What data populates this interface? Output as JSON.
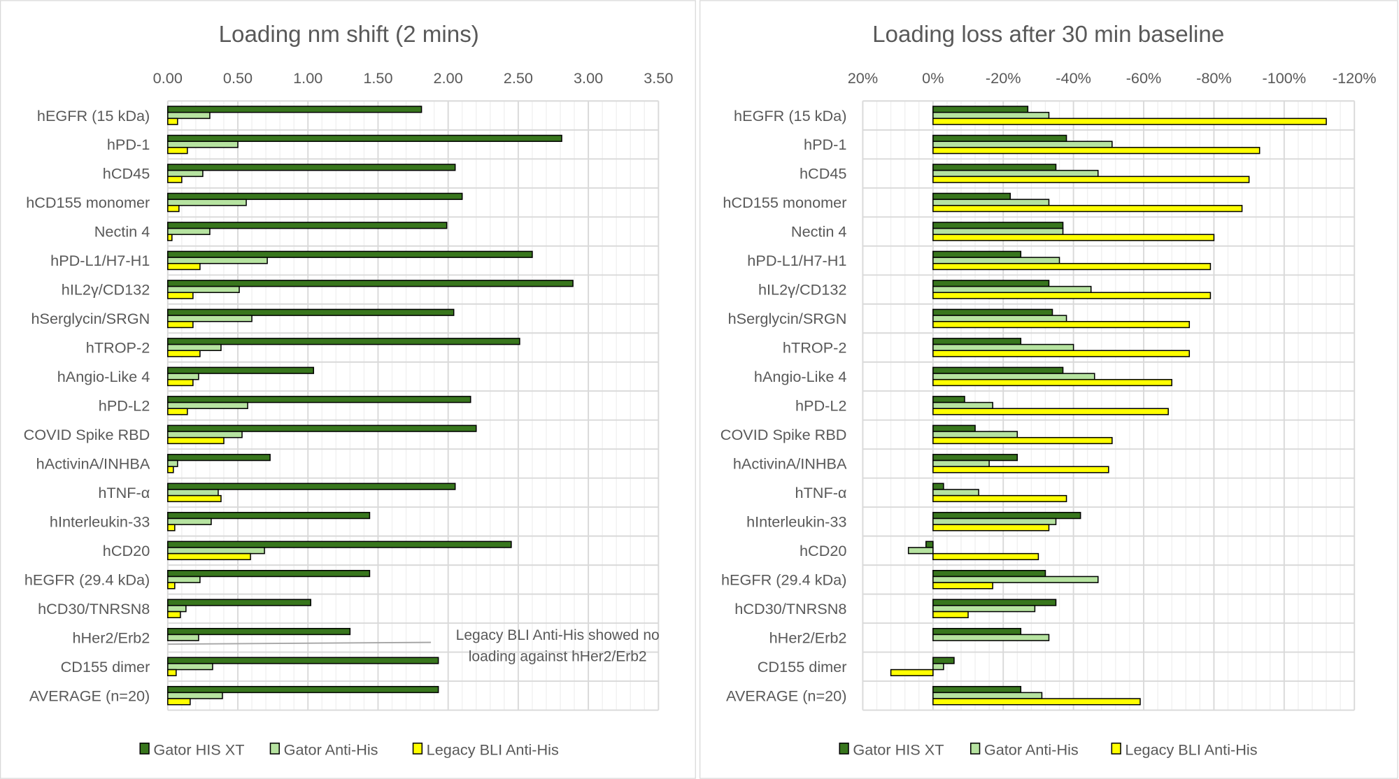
{
  "colors": {
    "gator_his_xt": "#38761d",
    "gator_anti_his": "#b6e3a0",
    "legacy_bli": "#ffff00",
    "grid_major": "#d9d9d9",
    "grid_minor": "#efefef",
    "text": "#595959"
  },
  "chart_data": [
    {
      "type": "bar",
      "orientation": "horizontal",
      "title": "Loading nm shift (2 mins)",
      "xlabel": "",
      "ylabel": "",
      "xlim": [
        0,
        3.5
      ],
      "x_ticks": [
        "0.00",
        "0.50",
        "1.00",
        "1.50",
        "2.00",
        "2.50",
        "3.00",
        "3.50"
      ],
      "grid": true,
      "legend": "bottom",
      "categories": [
        "hEGFR (15 kDa)",
        "hPD-1",
        "hCD45",
        "hCD155 monomer",
        "Nectin 4",
        "hPD-L1/H7-H1",
        "hIL2γ/CD132",
        "hSerglycin/SRGN",
        "hTROP-2",
        "hAngio-Like 4",
        "hPD-L2",
        "COVID Spike RBD",
        "hActivinA/INHBA",
        "hTNF-α",
        "hInterleukin-33",
        "hCD20",
        "hEGFR (29.4 kDa)",
        "hCD30/TNRSN8",
        "hHer2/Erb2",
        "CD155 dimer",
        "AVERAGE (n=20)"
      ],
      "series": [
        {
          "name": "Gator HIS XT",
          "values": [
            1.81,
            2.81,
            2.05,
            2.1,
            1.99,
            2.6,
            2.89,
            2.04,
            2.51,
            1.04,
            2.16,
            2.2,
            0.73,
            2.05,
            1.44,
            2.45,
            1.44,
            1.02,
            1.3,
            1.93,
            1.93
          ]
        },
        {
          "name": "Gator Anti-His",
          "values": [
            0.3,
            0.5,
            0.25,
            0.56,
            0.3,
            0.71,
            0.51,
            0.6,
            0.38,
            0.22,
            0.57,
            0.53,
            0.07,
            0.36,
            0.31,
            0.69,
            0.23,
            0.13,
            0.22,
            0.32,
            0.39
          ]
        },
        {
          "name": "Legacy BLI Anti-His",
          "values": [
            0.07,
            0.14,
            0.1,
            0.08,
            0.03,
            0.23,
            0.18,
            0.18,
            0.23,
            0.18,
            0.14,
            0.4,
            0.04,
            0.38,
            0.05,
            0.59,
            0.05,
            0.09,
            0,
            0.06,
            0.16
          ]
        }
      ],
      "annotation": [
        "Legacy BLI Anti-His showed no",
        "loading against hHer2/Erb2"
      ]
    },
    {
      "type": "bar",
      "orientation": "horizontal",
      "title": "Loading loss after 30 min baseline",
      "xlabel": "",
      "ylabel": "",
      "xlim": [
        20,
        -120
      ],
      "x_reversed": true,
      "x_ticks": [
        "20%",
        "0%",
        "-20%",
        "-40%",
        "-60%",
        "-80%",
        "-100%",
        "-120%"
      ],
      "grid": true,
      "legend": "bottom",
      "categories": [
        "hEGFR (15 kDa)",
        "hPD-1",
        "hCD45",
        "hCD155 monomer",
        "Nectin 4",
        "hPD-L1/H7-H1",
        "hIL2γ/CD132",
        "hSerglycin/SRGN",
        "hTROP-2",
        "hAngio-Like 4",
        "hPD-L2",
        "COVID Spike RBD",
        "hActivinA/INHBA",
        "hTNF-α",
        "hInterleukin-33",
        "hCD20",
        "hEGFR (29.4 kDa)",
        "hCD30/TNRSN8",
        "hHer2/Erb2",
        "CD155 dimer",
        "AVERAGE (n=20)"
      ],
      "series": [
        {
          "name": "Gator HIS XT",
          "values": [
            -27,
            -38,
            -35,
            -22,
            -37,
            -25,
            -33,
            -34,
            -25,
            -37,
            -9,
            -12,
            -24,
            -3,
            -42,
            2,
            -32,
            -35,
            -25,
            -6,
            -25
          ]
        },
        {
          "name": "Gator Anti-His",
          "values": [
            -33,
            -51,
            -47,
            -33,
            -37,
            -36,
            -45,
            -38,
            -40,
            -46,
            -17,
            -24,
            -16,
            -13,
            -35,
            7,
            -47,
            -29,
            -33,
            -3,
            -31
          ]
        },
        {
          "name": "Legacy BLI Anti-His",
          "values": [
            -112,
            -93,
            -90,
            -88,
            -80,
            -79,
            -79,
            -73,
            -73,
            -68,
            -67,
            -51,
            -50,
            -38,
            -33,
            -30,
            -17,
            -10,
            0,
            12,
            -59
          ]
        }
      ]
    }
  ]
}
